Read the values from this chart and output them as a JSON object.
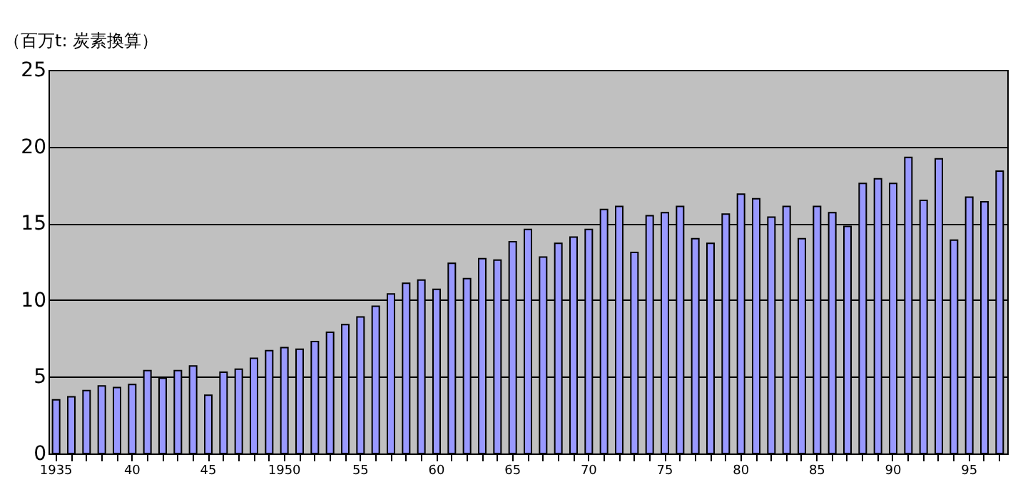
{
  "chart_data": {
    "type": "bar",
    "ylabel": "（百万t: 炭素換算）",
    "categories": [
      "1935",
      null,
      null,
      null,
      null,
      "40",
      null,
      null,
      null,
      null,
      "45",
      null,
      null,
      null,
      null,
      "1950",
      null,
      null,
      null,
      null,
      "55",
      null,
      null,
      null,
      null,
      "60",
      null,
      null,
      null,
      null,
      "65",
      null,
      null,
      null,
      null,
      "70",
      null,
      null,
      null,
      null,
      "75",
      null,
      null,
      null,
      null,
      "80",
      null,
      null,
      null,
      null,
      "85",
      null,
      null,
      null,
      null,
      "90",
      null,
      null,
      null,
      null,
      "95",
      null,
      null
    ],
    "series": [
      {
        "color": "#9999ff",
        "values": [
          3.5,
          3.7,
          4.1,
          4.4,
          4.3,
          4.5,
          5.4,
          4.9,
          5.4,
          5.7,
          3.8,
          5.3,
          5.5,
          6.2,
          6.7,
          6.9,
          6.8,
          7.3,
          7.9,
          8.4,
          8.9,
          9.6,
          10.4,
          11.1,
          11.3,
          10.7,
          12.4,
          11.4,
          12.7,
          12.6,
          13.8,
          14.6,
          12.8,
          13.7,
          14.1,
          14.6,
          15.9,
          16.1,
          13.1,
          15.5,
          15.7,
          16.1,
          14.0,
          13.7,
          15.6,
          16.9,
          16.6,
          15.4,
          16.1,
          14.0,
          16.1,
          15.7,
          14.8,
          17.6,
          17.9,
          17.6,
          19.3,
          16.5,
          19.2,
          13.9,
          16.7,
          16.4,
          18.4
        ]
      }
    ],
    "ylim": [
      0,
      25
    ],
    "yticks": [
      0,
      5,
      10,
      15,
      20,
      25
    ],
    "grid": "y",
    "legend": false
  }
}
